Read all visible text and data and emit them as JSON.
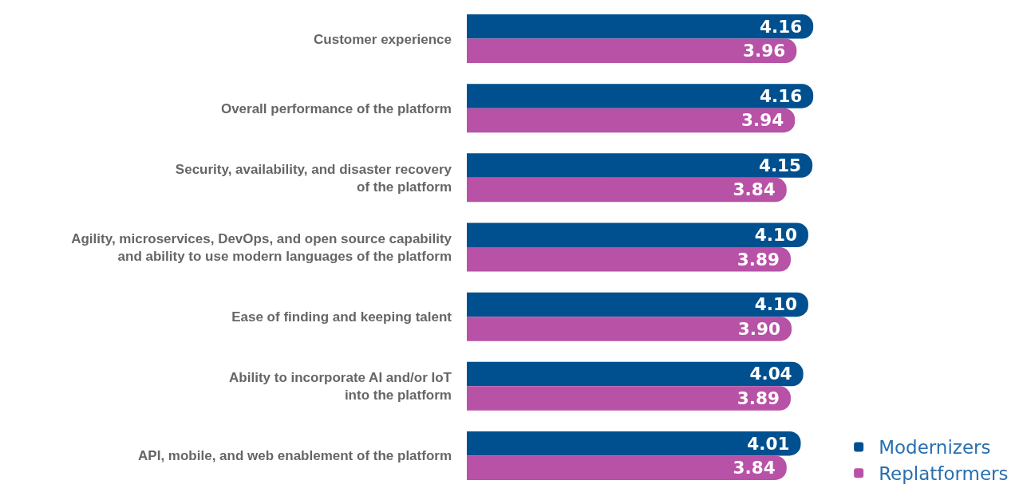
{
  "chart_data": {
    "type": "bar",
    "orientation": "horizontal",
    "categories": [
      "Customer experience",
      "Overall performance of the platform",
      "Security, availability, and disaster recovery\nof the platform",
      "Agility, microservices, DevOps, and open source capability\nand ability to use modern languages of the platform",
      "Ease of finding and keeping talent",
      "Ability to incorporate AI and/or IoT\ninto the platform",
      "API, mobile, and web enablement of the platform"
    ],
    "series": [
      {
        "name": "Modernizers",
        "color": "#00508f",
        "values": [
          4.16,
          4.16,
          4.15,
          4.1,
          4.1,
          4.04,
          4.01
        ],
        "value_labels": [
          "4.16",
          "4.16",
          "4.15",
          "4.10",
          "4.10",
          "4.04",
          "4.01"
        ]
      },
      {
        "name": "Replatformers",
        "color": "#b852a6",
        "values": [
          3.96,
          3.94,
          3.84,
          3.89,
          3.9,
          3.89,
          3.84
        ],
        "value_labels": [
          "3.96",
          "3.94",
          "3.84",
          "3.89",
          "3.90",
          "3.89",
          "3.84"
        ]
      }
    ],
    "tick_labels": "y",
    "legend": "bottom right"
  }
}
